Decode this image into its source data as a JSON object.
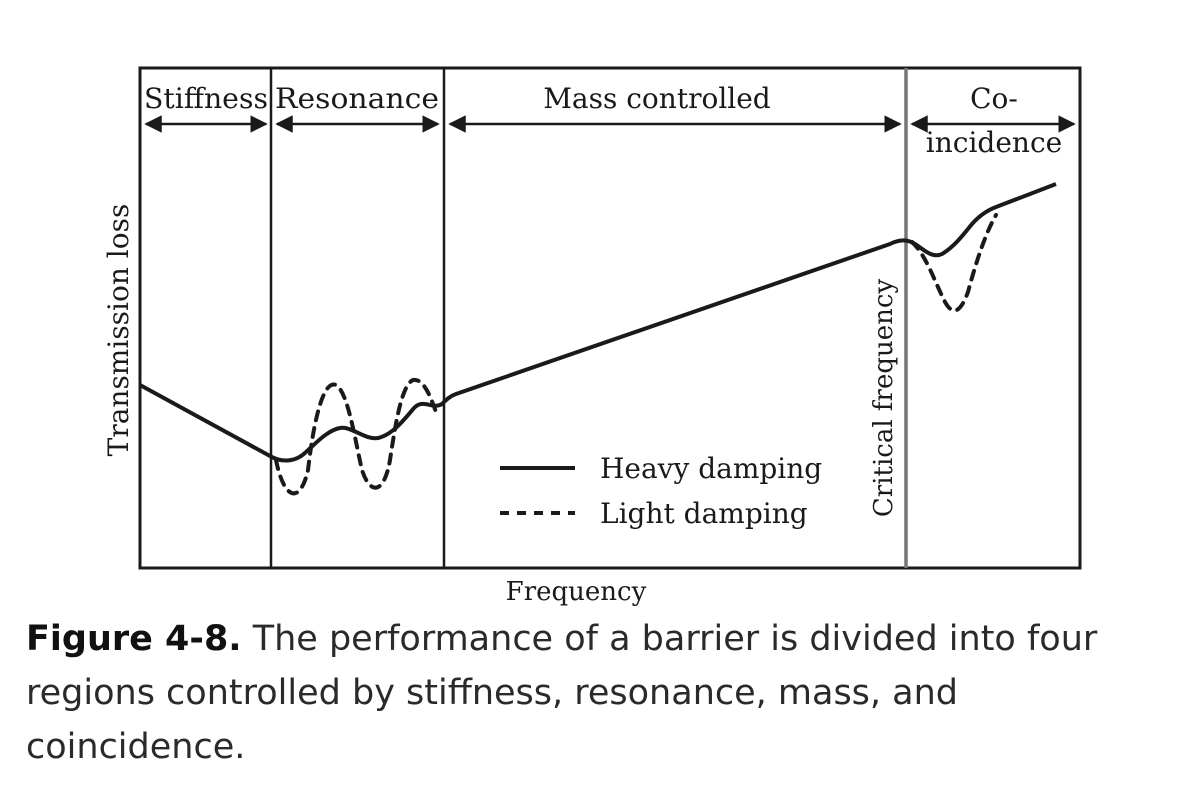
{
  "chart_data": {
    "type": "line",
    "xlabel": "Frequency",
    "ylabel": "Transmission loss",
    "regions": [
      {
        "label": "Stiffness"
      },
      {
        "label": "Resonance"
      },
      {
        "label": "Mass controlled"
      },
      {
        "label_lines": [
          "Co-",
          "incidence"
        ]
      }
    ],
    "marker_label": "Critical frequency",
    "series": [
      {
        "name": "Heavy damping",
        "style": "solid"
      },
      {
        "name": "Light damping",
        "style": "dotted"
      }
    ],
    "grid": false,
    "legend_position": "lower-middle"
  },
  "caption": {
    "label": "Figure 4-8.",
    "text": " The performance of a barrier is divided into four regions controlled by stiffness, resonance, mass, and coincidence."
  }
}
